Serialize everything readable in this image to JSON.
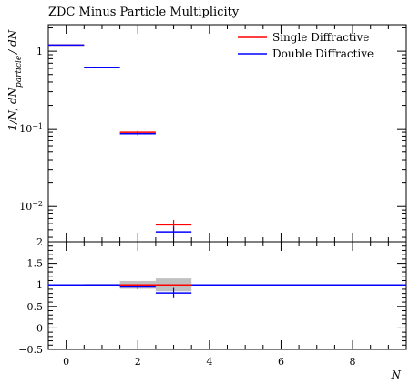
{
  "chart_data": [
    {
      "type": "line",
      "style": "step-histogram",
      "title": "ZDC Minus Particle Multiplicity",
      "ylabel": "1/N, dN_particle / dN",
      "ylabel_parts": {
        "pre": "1/N, dN",
        "sub": "particle",
        "post": "/ dN"
      },
      "xlabel": "",
      "yscale": "log",
      "xlim": [
        -0.5,
        9.5
      ],
      "ylim": [
        0.0035,
        2.2
      ],
      "yticks_major": [
        0.01,
        0.1,
        1
      ],
      "ytick_labels": [
        {
          "v": 0.01,
          "base": "10",
          "exp": "−2"
        },
        {
          "v": 0.1,
          "base": "10",
          "exp": "−1"
        },
        {
          "v": 1,
          "base": "1",
          "exp": ""
        }
      ],
      "legend_position": "top-right",
      "series": [
        {
          "name": "Single Diffractive",
          "color": "#ff0000",
          "bins": [
            {
              "x0": -0.5,
              "x1": 0.5,
              "y": 1.2
            },
            {
              "x0": 0.5,
              "x1": 1.5,
              "y": 0.62
            },
            {
              "x0": 1.5,
              "x1": 2.5,
              "y": 0.09,
              "err": 0.004
            },
            {
              "x0": 2.5,
              "x1": 3.5,
              "y": 0.0058,
              "err": 0.0009
            }
          ]
        },
        {
          "name": "Double Diffractive",
          "color": "#0000ff",
          "bins": [
            {
              "x0": -0.5,
              "x1": 0.5,
              "y": 1.2
            },
            {
              "x0": 0.5,
              "x1": 1.5,
              "y": 0.62
            },
            {
              "x0": 1.5,
              "x1": 2.5,
              "y": 0.086,
              "err": 0.004
            },
            {
              "x0": 2.5,
              "x1": 3.5,
              "y": 0.0047,
              "err": 0.0008
            }
          ]
        }
      ]
    },
    {
      "type": "line",
      "style": "ratio",
      "xlabel": "N",
      "ylabel": "",
      "xlim": [
        -0.5,
        9.5
      ],
      "ylim": [
        -0.5,
        2
      ],
      "xticks": [
        0,
        2,
        4,
        6,
        8
      ],
      "yticks": [
        -0.5,
        0,
        0.5,
        1,
        1.5,
        2
      ],
      "ytick_labels": [
        "−0.5",
        "0",
        "0.5",
        "1",
        "1.5",
        "2"
      ],
      "reference_band": [
        {
          "x0": 0.5,
          "x1": 1.5,
          "lo": 0.98,
          "hi": 1.02
        },
        {
          "x0": 1.5,
          "x1": 2.5,
          "lo": 0.91,
          "hi": 1.09
        },
        {
          "x0": 2.5,
          "x1": 3.5,
          "lo": 0.85,
          "hi": 1.15
        }
      ],
      "series": [
        {
          "name": "Single Diffractive",
          "color": "#ff0000",
          "points": [
            {
              "x0": -0.5,
              "x1": 9.5,
              "y": 1.0
            }
          ]
        },
        {
          "name": "Double Diffractive",
          "color": "#0000ff",
          "points": [
            {
              "x0": -0.5,
              "x1": 1.5,
              "y": 1.0
            },
            {
              "x0": 1.5,
              "x1": 2.5,
              "y": 0.95,
              "err": 0.05
            },
            {
              "x0": 2.5,
              "x1": 3.5,
              "y": 0.81,
              "err": 0.12
            },
            {
              "x0": 3.5,
              "x1": 9.5,
              "y": 1.0
            }
          ]
        }
      ]
    }
  ]
}
